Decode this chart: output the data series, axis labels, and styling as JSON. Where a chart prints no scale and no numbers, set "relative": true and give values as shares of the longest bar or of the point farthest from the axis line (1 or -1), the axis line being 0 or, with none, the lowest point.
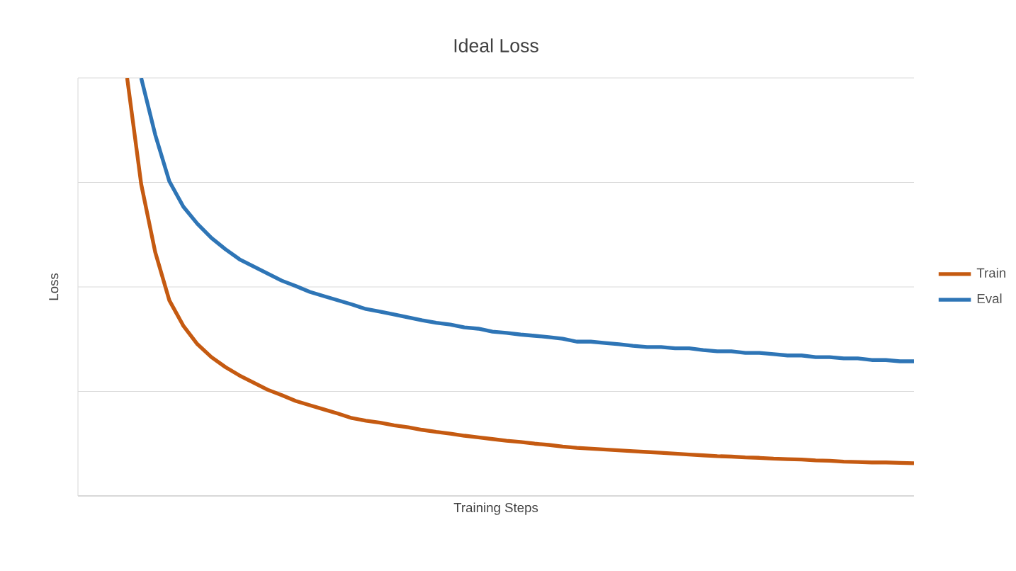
{
  "chart_data": {
    "type": "line",
    "title": "Ideal Loss",
    "xlabel": "Training Steps",
    "ylabel": "Loss",
    "relative": true,
    "grid": "y",
    "legend": "right",
    "categories": [
      null,
      null,
      null,
      null,
      null,
      null,
      null,
      null,
      null,
      null,
      null,
      null,
      null,
      null,
      null,
      null,
      null,
      null,
      null,
      null,
      null,
      null,
      null,
      null,
      null,
      null,
      null,
      null,
      null,
      null,
      null,
      null,
      null,
      null,
      null,
      null,
      null,
      null,
      null,
      null,
      null,
      null,
      null,
      null,
      null,
      null,
      null,
      null,
      null,
      null,
      null,
      null,
      null,
      null,
      null,
      null,
      null,
      null,
      null,
      null
    ],
    "series": [
      {
        "name": "Train",
        "color": "#c55a11",
        "values": [
          null,
          null,
          null,
          1.0,
          0.746,
          0.583,
          0.468,
          0.407,
          0.363,
          0.332,
          0.308,
          0.288,
          0.271,
          0.254,
          0.241,
          0.227,
          0.217,
          0.207,
          0.197,
          0.186,
          0.18,
          0.175,
          0.169,
          0.164,
          0.158,
          0.153,
          0.149,
          0.144,
          0.14,
          0.136,
          0.132,
          0.129,
          0.125,
          0.122,
          0.118,
          0.115,
          0.113,
          0.111,
          0.109,
          0.107,
          0.105,
          0.103,
          0.101,
          0.099,
          0.097,
          0.095,
          0.094,
          0.092,
          0.091,
          0.089,
          0.088,
          0.087,
          0.085,
          0.084,
          0.082,
          0.081,
          0.08,
          0.08,
          0.079,
          0.078
        ]
      },
      {
        "name": "Eval",
        "color": "#2e75b6",
        "values": [
          null,
          null,
          null,
          null,
          1.0,
          0.864,
          0.753,
          0.692,
          0.651,
          0.617,
          0.59,
          0.566,
          0.549,
          0.532,
          0.515,
          0.502,
          0.488,
          0.478,
          0.468,
          0.458,
          0.447,
          0.441,
          0.434,
          0.427,
          0.42,
          0.414,
          0.41,
          0.403,
          0.4,
          0.393,
          0.39,
          0.386,
          0.383,
          0.38,
          0.376,
          0.369,
          0.369,
          0.366,
          0.363,
          0.359,
          0.356,
          0.356,
          0.353,
          0.353,
          0.349,
          0.346,
          0.346,
          0.342,
          0.342,
          0.339,
          0.336,
          0.336,
          0.332,
          0.332,
          0.329,
          0.329,
          0.325,
          0.325,
          0.322,
          0.322
        ]
      }
    ]
  }
}
